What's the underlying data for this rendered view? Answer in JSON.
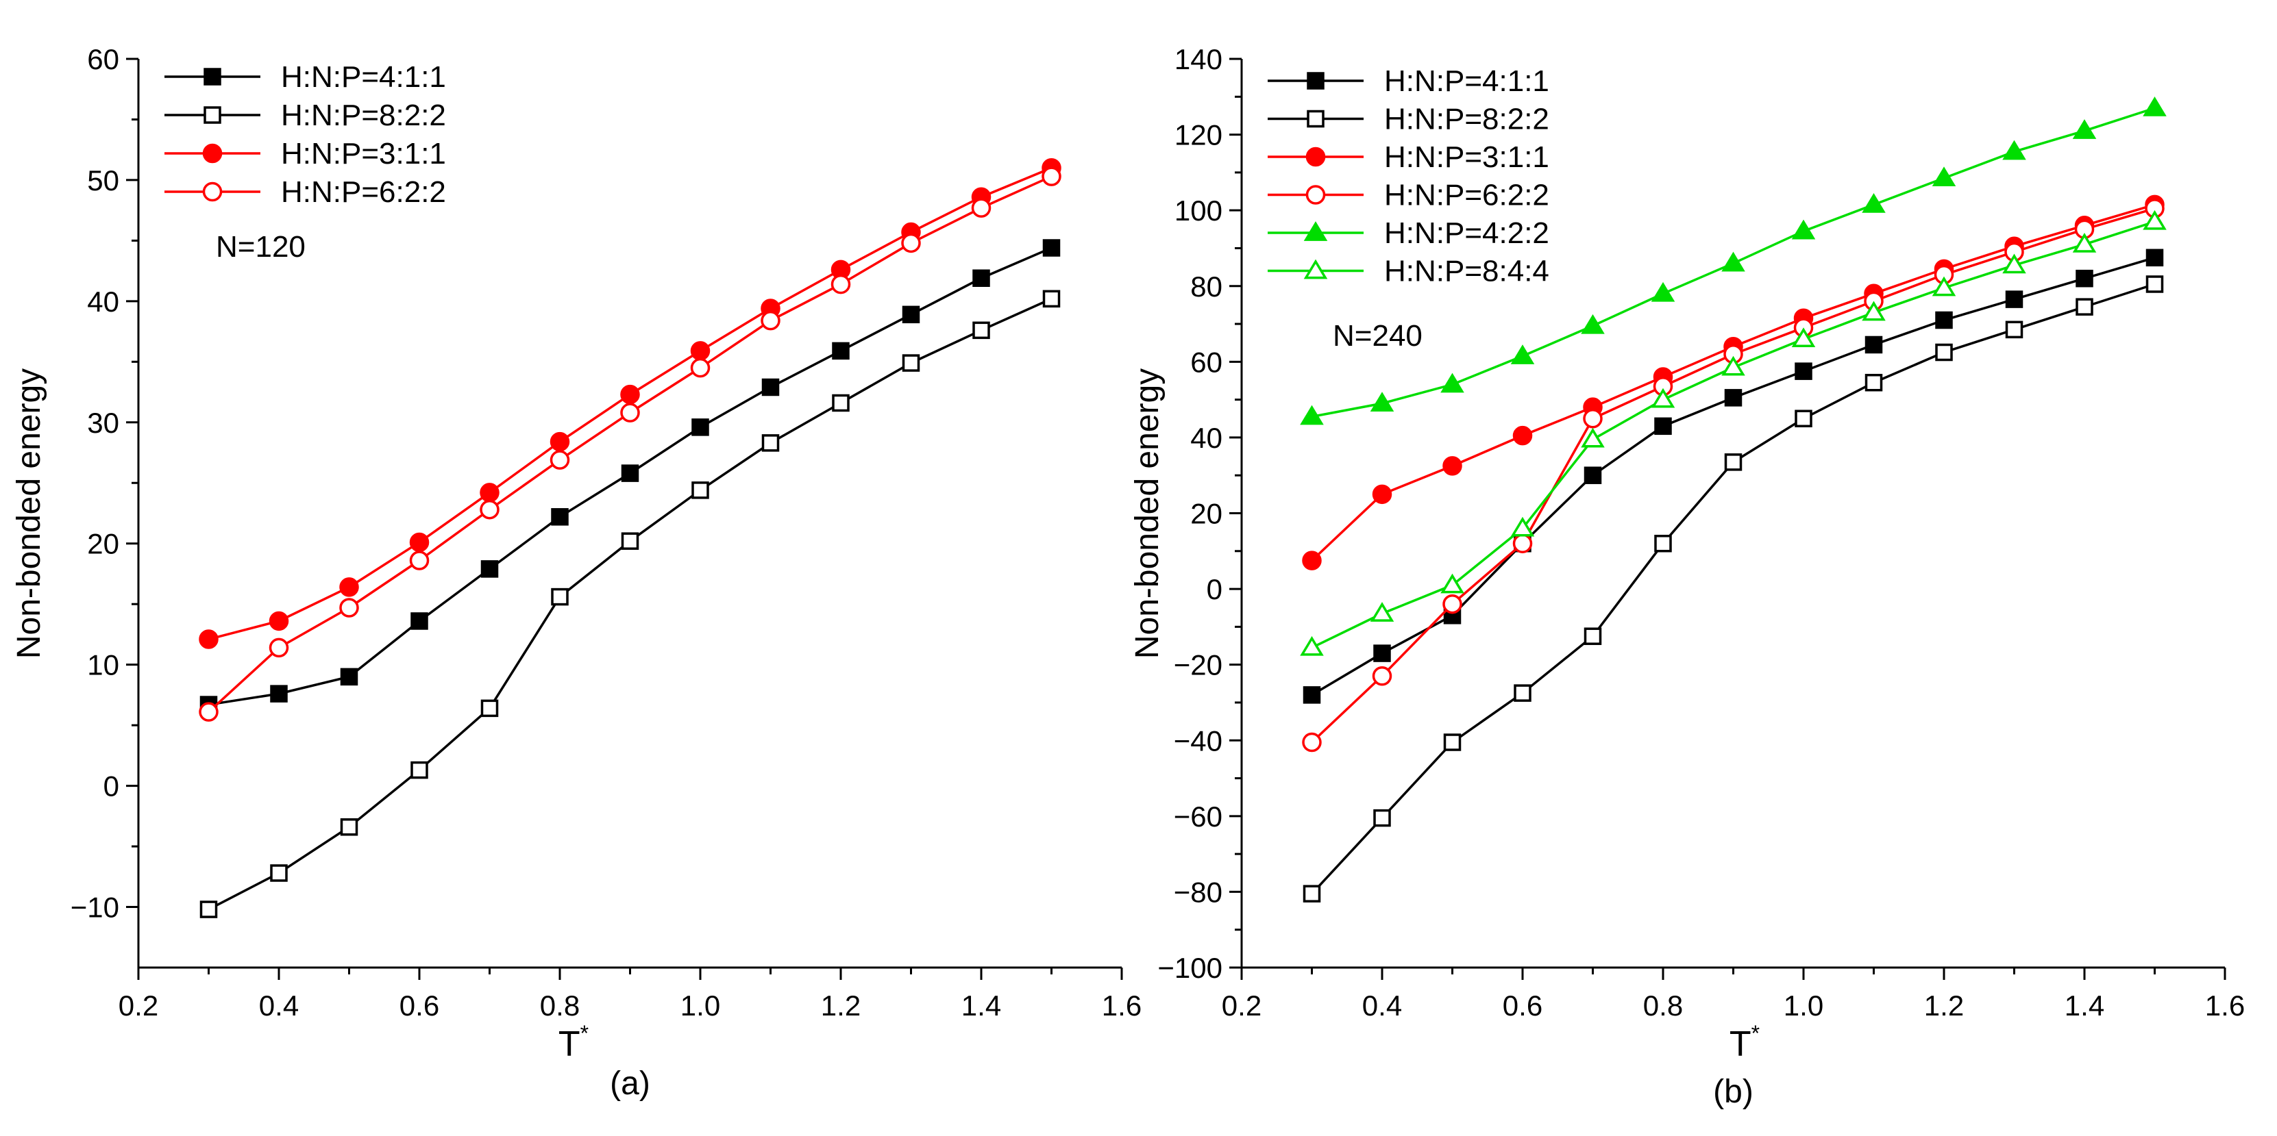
{
  "chart_data": [
    {
      "type": "line",
      "panel_label": "(a)",
      "xlabel": "T",
      "xlabel_superscript": "*",
      "ylabel": "Non-bonded energy",
      "xlim": [
        0.2,
        1.6
      ],
      "ylim": [
        -15,
        60
      ],
      "xticks": [
        0.2,
        0.4,
        0.6,
        0.8,
        1.0,
        1.2,
        1.4,
        1.6
      ],
      "xtick_labels": [
        "0.2",
        "0.4",
        "0.6",
        "0.8",
        "1.0",
        "1.2",
        "1.4",
        "1.6"
      ],
      "yticks": [
        -10,
        0,
        10,
        20,
        30,
        40,
        50,
        60
      ],
      "ytick_labels": [
        "−10",
        "0",
        "10",
        "20",
        "30",
        "40",
        "50",
        "60"
      ],
      "annotation": "N=120",
      "legend_position": "top-left",
      "x": [
        0.3,
        0.4,
        0.5,
        0.6,
        0.7,
        0.8,
        0.9,
        1.0,
        1.1,
        1.2,
        1.3,
        1.4,
        1.5
      ],
      "series": [
        {
          "name": "H:N:P=4:1:1",
          "color": "#000000",
          "marker": "square",
          "filled": true,
          "values": [
            6.7,
            7.6,
            9.0,
            13.6,
            17.9,
            22.2,
            25.8,
            29.6,
            32.9,
            35.9,
            38.9,
            41.9,
            44.4
          ]
        },
        {
          "name": "H:N:P=8:2:2",
          "color": "#000000",
          "marker": "square",
          "filled": false,
          "values": [
            -10.2,
            -7.2,
            -3.4,
            1.3,
            6.4,
            15.6,
            20.2,
            24.4,
            28.3,
            31.6,
            34.9,
            37.6,
            40.2
          ]
        },
        {
          "name": "H:N:P=3:1:1",
          "color": "#ff0000",
          "marker": "circle",
          "filled": true,
          "values": [
            12.1,
            13.6,
            16.4,
            20.1,
            24.2,
            28.4,
            32.3,
            35.9,
            39.4,
            42.6,
            45.7,
            48.6,
            51.0
          ]
        },
        {
          "name": "H:N:P=6:2:2",
          "color": "#ff0000",
          "marker": "circle",
          "filled": false,
          "values": [
            6.1,
            11.4,
            14.7,
            18.6,
            22.8,
            26.9,
            30.8,
            34.5,
            38.4,
            41.4,
            44.8,
            47.7,
            50.3
          ]
        }
      ]
    },
    {
      "type": "line",
      "panel_label": "(b)",
      "xlabel": "T",
      "xlabel_superscript": "*",
      "ylabel": "Non-bonded energy",
      "xlim": [
        0.2,
        1.6
      ],
      "ylim": [
        -100,
        140
      ],
      "xticks": [
        0.2,
        0.4,
        0.6,
        0.8,
        1.0,
        1.2,
        1.4,
        1.6
      ],
      "xtick_labels": [
        "0.2",
        "0.4",
        "0.6",
        "0.8",
        "1.0",
        "1.2",
        "1.4",
        "1.6"
      ],
      "yticks": [
        -100,
        -80,
        -60,
        -40,
        -20,
        0,
        20,
        40,
        60,
        80,
        100,
        120,
        140
      ],
      "ytick_labels": [
        "−100",
        "−80",
        "−60",
        "−40",
        "−20",
        "0",
        "20",
        "40",
        "60",
        "80",
        "100",
        "120",
        "140"
      ],
      "annotation": "N=240",
      "legend_position": "top-left",
      "x": [
        0.3,
        0.4,
        0.5,
        0.6,
        0.7,
        0.8,
        0.9,
        1.0,
        1.1,
        1.2,
        1.3,
        1.4,
        1.5
      ],
      "series": [
        {
          "name": "H:N:P=4:1:1",
          "color": "#000000",
          "marker": "square",
          "filled": true,
          "values": [
            -28,
            -17,
            -7,
            12,
            30,
            43,
            50.5,
            57.5,
            64.5,
            71,
            76.5,
            82,
            87.5
          ]
        },
        {
          "name": "H:N:P=8:2:2",
          "color": "#000000",
          "marker": "square",
          "filled": false,
          "values": [
            -80.5,
            -60.5,
            -40.5,
            -27.5,
            -12.5,
            12,
            33.5,
            45,
            54.5,
            62.5,
            68.5,
            74.5,
            80.5
          ]
        },
        {
          "name": "H:N:P=3:1:1",
          "color": "#ff0000",
          "marker": "circle",
          "filled": true,
          "values": [
            7.5,
            25,
            32.5,
            40.5,
            48,
            56,
            64,
            71.5,
            78,
            84.5,
            90.5,
            96,
            101.5
          ]
        },
        {
          "name": "H:N:P=6:2:2",
          "color": "#ff0000",
          "marker": "circle",
          "filled": false,
          "values": [
            -40.5,
            -23,
            -4,
            12,
            45,
            53.5,
            62,
            69,
            76,
            83,
            89,
            95,
            100.5
          ]
        },
        {
          "name": "H:N:P=4:2:2",
          "color": "#00dd00",
          "marker": "triangle",
          "filled": true,
          "values": [
            45.5,
            49,
            54,
            61.5,
            69.5,
            78,
            86,
            94.5,
            101.5,
            108.5,
            115.5,
            121,
            127
          ]
        },
        {
          "name": "H:N:P=8:4:4",
          "color": "#00dd00",
          "marker": "triangle",
          "filled": false,
          "values": [
            -15.5,
            -6.5,
            1,
            16,
            39.5,
            50,
            58.5,
            66,
            73,
            79.5,
            85.5,
            91,
            97
          ]
        }
      ]
    }
  ]
}
